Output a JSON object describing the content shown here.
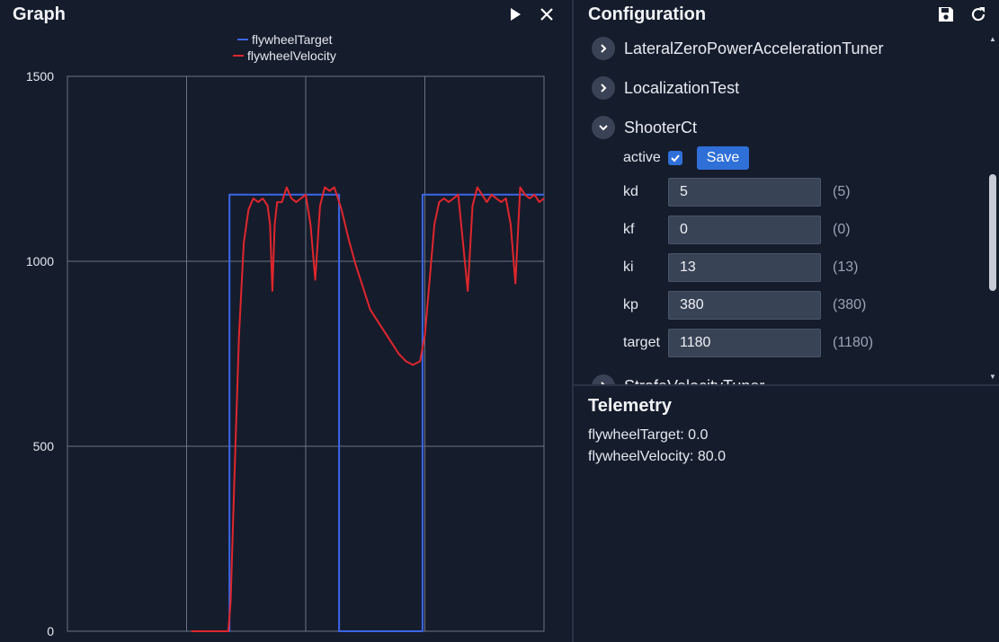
{
  "graph": {
    "title": "Graph",
    "icons": {
      "play": "play-icon",
      "close": "close-icon"
    }
  },
  "chart_data": {
    "type": "line",
    "title": "",
    "xlabel": "",
    "ylabel": "",
    "ylim": [
      0,
      1500
    ],
    "xlim": [
      0,
      20
    ],
    "yticks": [
      "1500",
      "1000",
      "500",
      "0"
    ],
    "ytick_values": [
      1500,
      1000,
      500,
      0
    ],
    "xgrid": [
      5,
      10,
      15
    ],
    "grid": true,
    "legend_position": "top",
    "series": [
      {
        "name": "flywheelTarget",
        "color": "#3b66e6",
        "x": [
          5.4,
          6.8,
          6.8,
          11.4,
          11.4,
          14.9,
          14.9,
          20
        ],
        "y": [
          0,
          0,
          1180,
          1180,
          0,
          0,
          1180,
          1180
        ]
      },
      {
        "name": "flywheelVelocity",
        "color": "#e0262c",
        "x": [
          5.2,
          6.75,
          6.85,
          7.0,
          7.2,
          7.4,
          7.6,
          7.8,
          8.0,
          8.2,
          8.4,
          8.5,
          8.6,
          8.7,
          8.8,
          9.0,
          9.2,
          9.4,
          9.6,
          9.8,
          10.0,
          10.2,
          10.4,
          10.6,
          10.8,
          11.0,
          11.2,
          11.5,
          11.8,
          12.1,
          12.4,
          12.7,
          13.0,
          13.3,
          13.6,
          13.9,
          14.2,
          14.5,
          14.8,
          15.0,
          15.2,
          15.4,
          15.6,
          15.8,
          16.0,
          16.2,
          16.4,
          16.6,
          16.8,
          17.0,
          17.2,
          17.4,
          17.6,
          17.8,
          18.0,
          18.2,
          18.4,
          18.6,
          18.8,
          19.0,
          19.2,
          19.4,
          19.6,
          19.8,
          20.0
        ],
        "y": [
          0,
          0,
          80,
          400,
          800,
          1050,
          1140,
          1170,
          1160,
          1170,
          1150,
          1100,
          920,
          1100,
          1160,
          1160,
          1200,
          1170,
          1160,
          1170,
          1180,
          1100,
          950,
          1150,
          1200,
          1190,
          1200,
          1140,
          1060,
          990,
          930,
          870,
          840,
          810,
          780,
          750,
          730,
          720,
          730,
          800,
          950,
          1100,
          1160,
          1170,
          1160,
          1170,
          1180,
          1050,
          920,
          1150,
          1200,
          1180,
          1160,
          1180,
          1170,
          1160,
          1170,
          1100,
          940,
          1200,
          1180,
          1170,
          1180,
          1160,
          1170
        ]
      }
    ]
  },
  "config": {
    "title": "Configuration",
    "icons": {
      "save": "save-icon",
      "refresh": "refresh-icon"
    },
    "items": [
      {
        "label": "LateralZeroPowerAccelerationTuner",
        "expanded": false
      },
      {
        "label": "LocalizationTest",
        "expanded": false
      },
      {
        "label": "ShooterCt",
        "expanded": true
      },
      {
        "label": "StrafeVelocityTuner",
        "expanded": false
      }
    ],
    "shooter": {
      "active_label": "active",
      "active_checked": true,
      "save_label": "Save",
      "fields": [
        {
          "name": "kd",
          "value": "5",
          "current": "(5)"
        },
        {
          "name": "kf",
          "value": "0",
          "current": "(0)"
        },
        {
          "name": "ki",
          "value": "13",
          "current": "(13)"
        },
        {
          "name": "kp",
          "value": "380",
          "current": "(380)"
        },
        {
          "name": "target",
          "value": "1180",
          "current": "(1180)"
        }
      ]
    }
  },
  "telemetry": {
    "title": "Telemetry",
    "lines": [
      "flywheelTarget: 0.0",
      "flywheelVelocity: 80.0"
    ]
  }
}
